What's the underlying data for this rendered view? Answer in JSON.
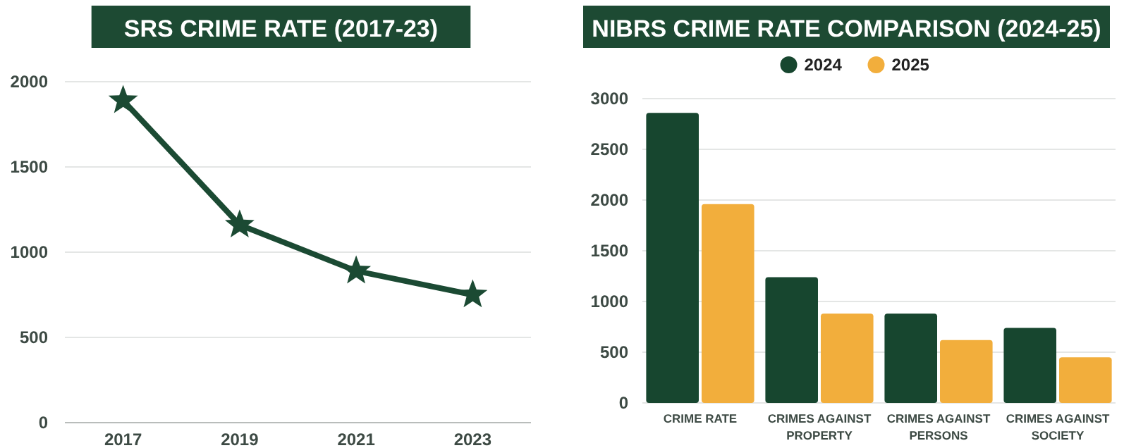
{
  "chart_data": [
    {
      "type": "line",
      "title": "SRS CRIME RATE (2017-23)",
      "categories": [
        "2017",
        "2019",
        "2021",
        "2023"
      ],
      "series": [
        {
          "color": "#1b4a33",
          "values": [
            1890,
            1160,
            890,
            750
          ]
        }
      ],
      "ylim": [
        0,
        2000
      ],
      "yticks": [
        0,
        500,
        1000,
        1500,
        2000
      ],
      "grid": "y",
      "marker": "star",
      "line_style": "solid",
      "legend": false
    },
    {
      "type": "bar",
      "title": "NIBRS CRIME RATE COMPARISON (2024-25)",
      "categories": [
        "CRIME RATE",
        "CRIMES AGAINST PROPERTY",
        "CRIMES AGAINST PERSONS",
        "CRIMES AGAINST SOCIETY"
      ],
      "series": [
        {
          "name": "2024",
          "color": "#17462f",
          "values": [
            2860,
            1240,
            880,
            740
          ]
        },
        {
          "name": "2025",
          "color": "#f2ae3c",
          "values": [
            1960,
            880,
            620,
            450
          ]
        }
      ],
      "ylim": [
        0,
        3000
      ],
      "yticks": [
        0,
        500,
        1000,
        1500,
        2000,
        2500,
        3000
      ],
      "grid": "y",
      "legend": "top"
    }
  ]
}
